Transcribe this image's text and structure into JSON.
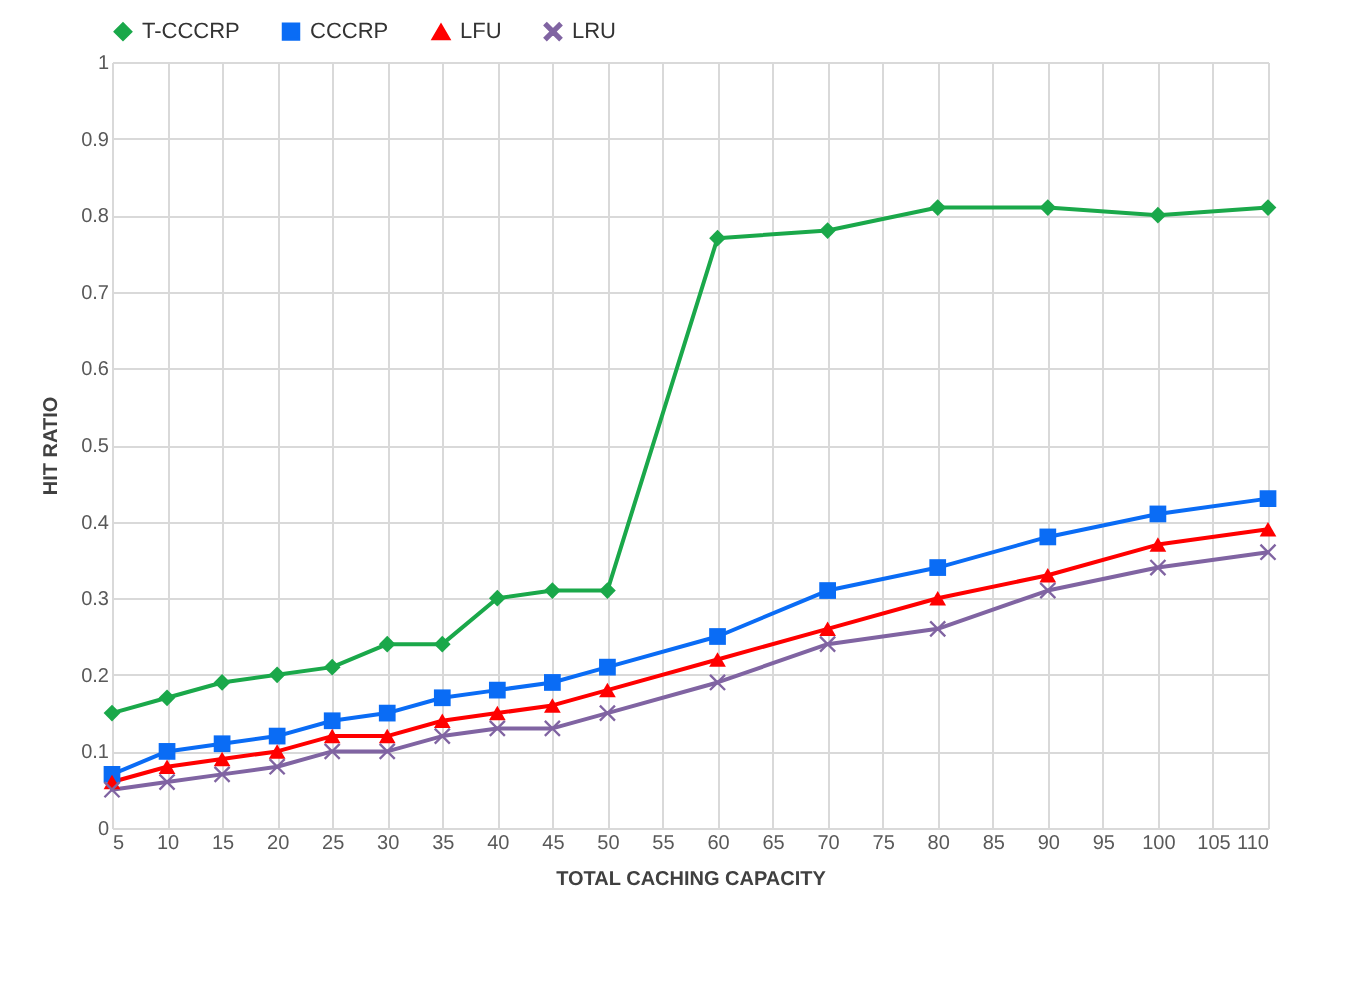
{
  "chart_data": {
    "type": "line",
    "xlabel": "TOTAL CACHING CAPACITY",
    "ylabel": "HIT RATIO",
    "x": [
      5,
      10,
      15,
      20,
      25,
      30,
      35,
      40,
      45,
      50,
      60,
      70,
      80,
      90,
      100,
      110
    ],
    "xlim": [
      5,
      110
    ],
    "xticks": [
      5,
      10,
      15,
      20,
      25,
      30,
      35,
      40,
      45,
      50,
      55,
      60,
      65,
      70,
      75,
      80,
      85,
      90,
      95,
      100,
      105,
      110
    ],
    "ylim": [
      0,
      1
    ],
    "yticks": [
      0,
      0.1,
      0.2,
      0.3,
      0.4,
      0.5,
      0.6,
      0.7,
      0.8,
      0.9,
      1
    ],
    "grid": true,
    "legend": "top",
    "series": [
      {
        "name": "T-CCCRP",
        "color": "#1aa84a",
        "marker": "diamond",
        "values": [
          0.15,
          0.17,
          0.19,
          0.2,
          0.21,
          0.24,
          0.24,
          0.3,
          0.31,
          0.31,
          0.77,
          0.78,
          0.81,
          0.81,
          0.8,
          0.81
        ]
      },
      {
        "name": "CCCRP",
        "color": "#0a6cf5",
        "marker": "square",
        "values": [
          0.07,
          0.1,
          0.11,
          0.12,
          0.14,
          0.15,
          0.17,
          0.18,
          0.19,
          0.21,
          0.25,
          0.31,
          0.34,
          0.38,
          0.41,
          0.43
        ]
      },
      {
        "name": "LFU",
        "color": "#ff0000",
        "marker": "triangle",
        "values": [
          0.06,
          0.08,
          0.09,
          0.1,
          0.12,
          0.12,
          0.14,
          0.15,
          0.16,
          0.18,
          0.22,
          0.26,
          0.3,
          0.33,
          0.37,
          0.39
        ]
      },
      {
        "name": "LRU",
        "color": "#8064a2",
        "marker": "cross",
        "values": [
          0.05,
          0.06,
          0.07,
          0.08,
          0.1,
          0.1,
          0.12,
          0.13,
          0.13,
          0.15,
          0.19,
          0.24,
          0.26,
          0.31,
          0.34,
          0.36
        ]
      }
    ]
  }
}
